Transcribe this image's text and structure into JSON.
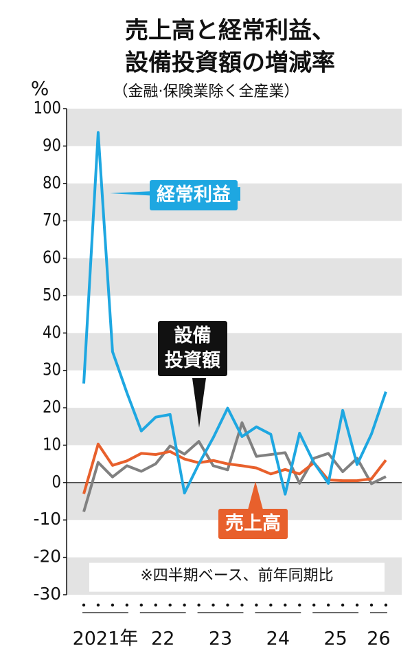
{
  "chart_data": {
    "type": "line",
    "title": [
      "売上高と経常利益、",
      "設備投資額の増減率"
    ],
    "subtitle": "（金融·保険業除く全産業）",
    "y_unit": "%",
    "note": "※四半期ベース、前年同期比",
    "categories": [
      "2021年",
      null,
      null,
      null,
      "22",
      null,
      null,
      null,
      "23",
      null,
      null,
      null,
      "24",
      null,
      null,
      null,
      "25",
      null,
      null,
      null,
      "26",
      null
    ],
    "series": [
      {
        "name": "経常利益",
        "color": "#1ea7e1",
        "label_color": "#1ea7e1",
        "values": [
          26.5,
          93.6,
          35,
          24,
          13.8,
          17.5,
          18.2,
          -2.8,
          5,
          12,
          19.9,
          12.3,
          14.9,
          12.9,
          -3.1,
          13.2,
          5.3,
          -0.2,
          19.3,
          4.8,
          13,
          24.3
        ]
      },
      {
        "name": "設備\n投資額",
        "color": "#808080",
        "label_color": "#111111",
        "values": [
          -7.8,
          5.4,
          1.5,
          4.5,
          3,
          5,
          9.8,
          7.6,
          11,
          4.5,
          3.4,
          16,
          7,
          7.5,
          8,
          -0.2,
          6.5,
          7.8,
          2.9,
          6.5,
          -0.3,
          1.6
        ]
      },
      {
        "name": "売上高",
        "color": "#e8602c",
        "label_color": "#e8602c",
        "values": [
          -3,
          10.3,
          4.6,
          5.8,
          7.8,
          7.5,
          8.3,
          6.3,
          5.3,
          5.9,
          5,
          4.5,
          3.9,
          2.3,
          3.5,
          2.3,
          5.3,
          0.7,
          0.5,
          0.5,
          1,
          6
        ]
      }
    ],
    "ylim": [
      -30,
      100
    ],
    "yticks": [
      -30,
      -20,
      -10,
      0,
      10,
      20,
      30,
      40,
      50,
      60,
      70,
      80,
      90,
      100
    ],
    "bands": true
  }
}
